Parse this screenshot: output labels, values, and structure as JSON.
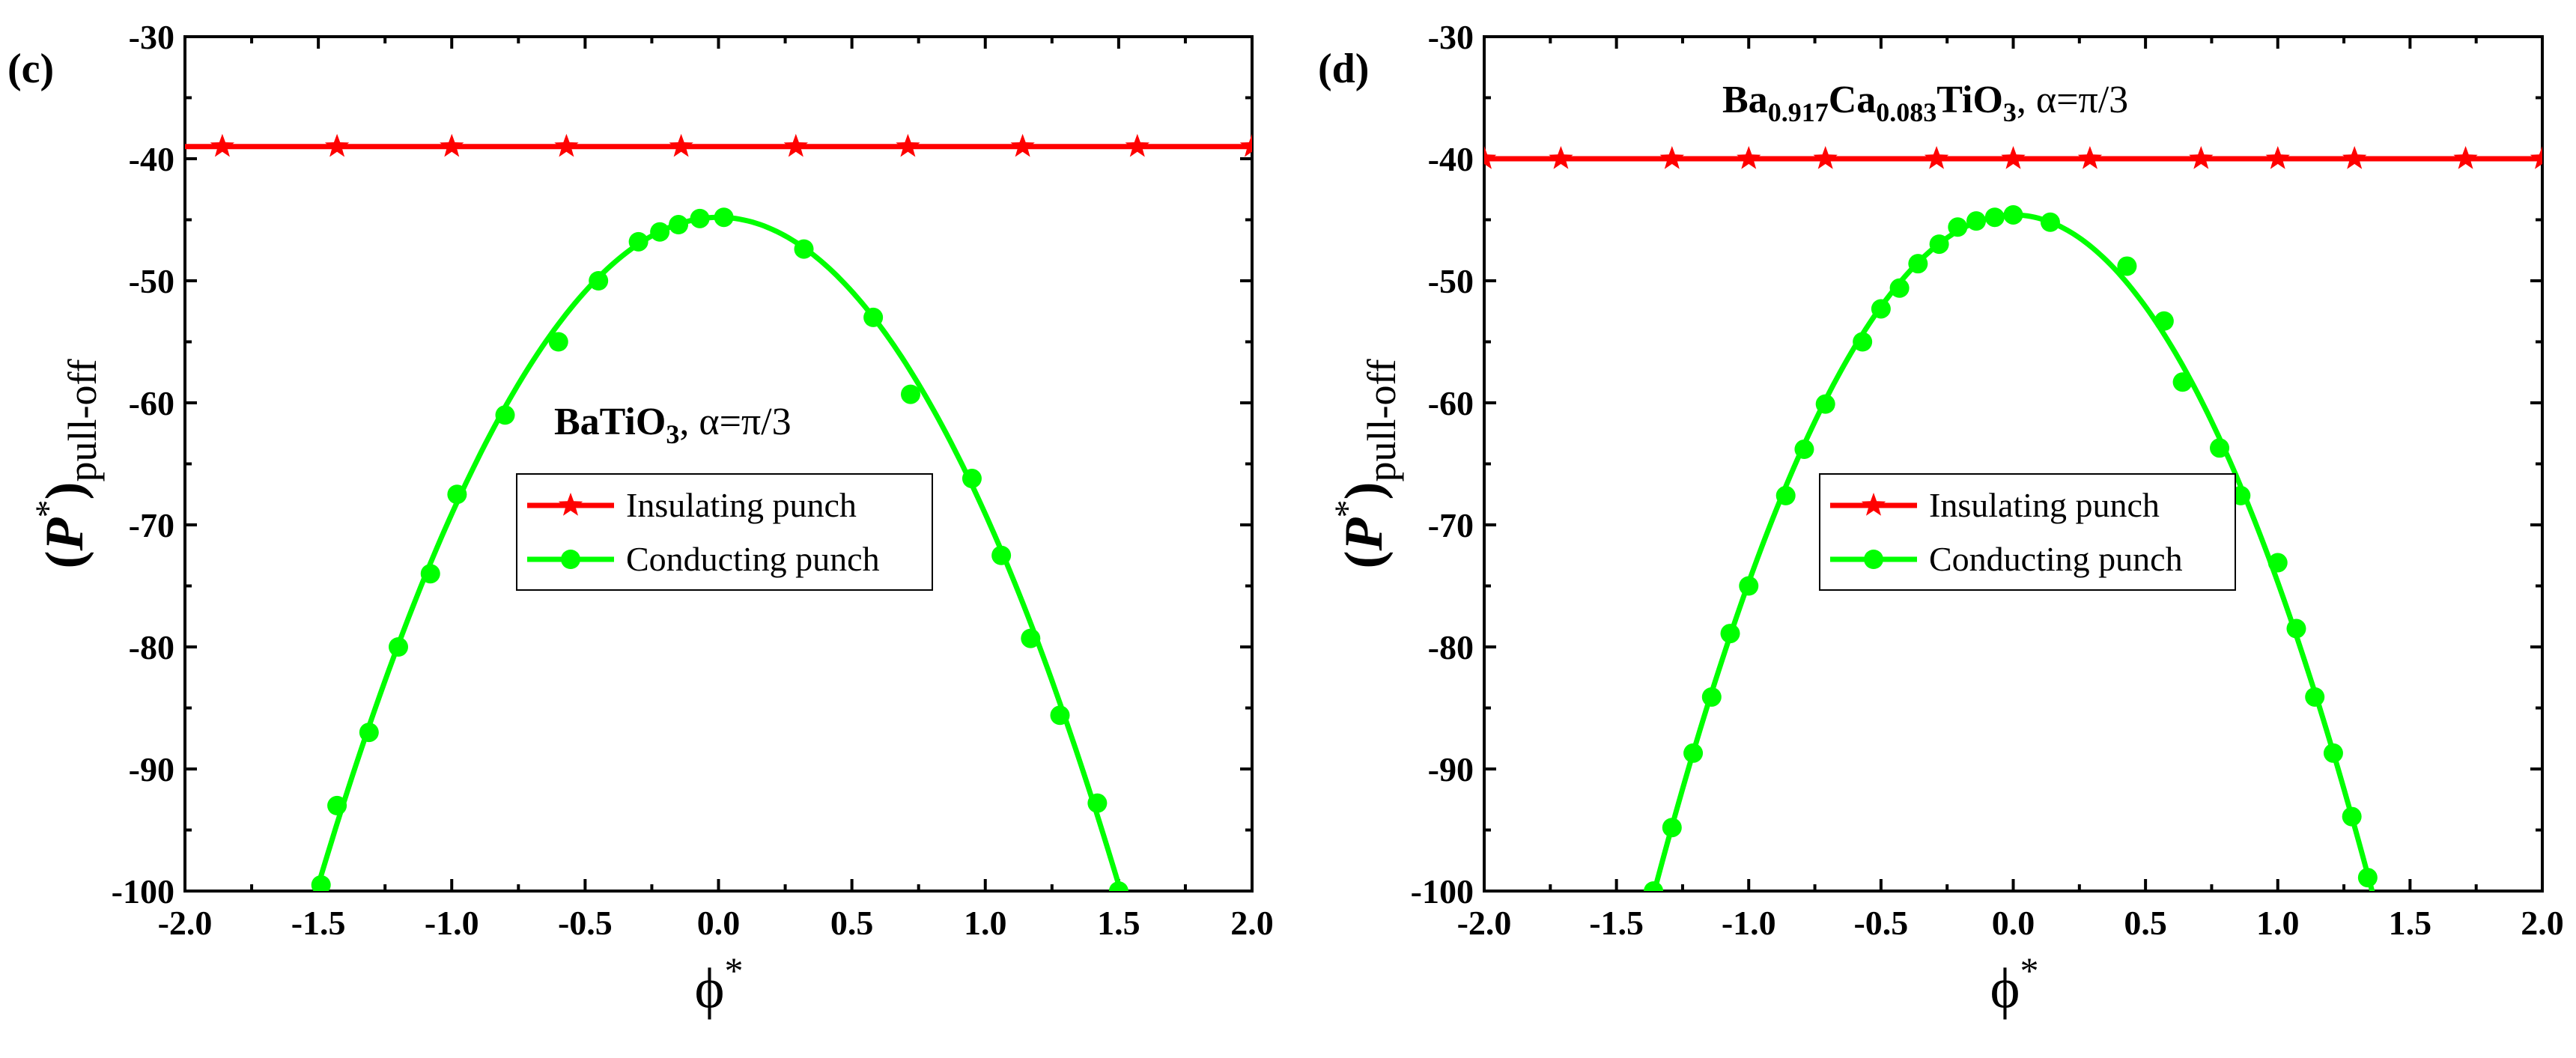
{
  "chart_data": [
    {
      "type": "line",
      "panel_label": "(c)",
      "xlabel": "ϕ",
      "xlabel_sup": "*",
      "ylabel": "P",
      "ylabel_sup": "*",
      "ylabel_sub": "pull-off",
      "xlim": [
        -2.0,
        2.0
      ],
      "ylim": [
        -100,
        -30
      ],
      "xticks": [
        -2.0,
        -1.5,
        -1.0,
        -0.5,
        0.0,
        0.5,
        1.0,
        1.5,
        2.0
      ],
      "xtick_labels": [
        "-2.0",
        "-1.5",
        "-1.0",
        "-0.5",
        "0.0",
        "0.5",
        "1.0",
        "1.5",
        "2.0"
      ],
      "yticks": [
        -100,
        -90,
        -80,
        -70,
        -60,
        -50,
        -40,
        -30
      ],
      "ytick_labels": [
        "-100",
        "-90",
        "-80",
        "-70",
        "-60",
        "-50",
        "-40",
        "-30"
      ],
      "annotation": {
        "base": "BaTiO",
        "sub": "3",
        "tail": ",   α=π/3"
      },
      "legend": [
        {
          "label": "Insulating punch",
          "color": "#ff0000",
          "marker": "star"
        },
        {
          "label": "Conducting punch",
          "color": "#00ff00",
          "marker": "circle"
        }
      ],
      "series": [
        {
          "name": "Insulating punch",
          "color": "#ff0000",
          "marker": "star",
          "line_x": [
            -2.0,
            2.0
          ],
          "line_y": [
            -39,
            -39
          ],
          "x": [
            -1.86,
            -1.43,
            -1.0,
            -0.57,
            -0.14,
            0.29,
            0.71,
            1.14,
            1.57,
            2.0
          ],
          "y": [
            -39,
            -39,
            -39,
            -39,
            -39,
            -39,
            -39,
            -39,
            -39,
            -39
          ]
        },
        {
          "name": "Conducting punch",
          "color": "#00ff00",
          "marker": "circle",
          "curve": {
            "a": -24.3,
            "c": -44.8,
            "from": -1.51,
            "to": 1.52
          },
          "x": [
            -1.49,
            -1.43,
            -1.31,
            -1.2,
            -1.08,
            -0.98,
            -0.8,
            -0.6,
            -0.45,
            -0.3,
            -0.22,
            -0.15,
            -0.07,
            0.02,
            0.32,
            0.58,
            0.72,
            0.95,
            1.06,
            1.17,
            1.28,
            1.42,
            1.5
          ],
          "y": [
            -99.5,
            -93,
            -87,
            -80,
            -74,
            -67.5,
            -61,
            -55,
            -50,
            -46.8,
            -46,
            -45.4,
            -44.9,
            -44.8,
            -47.4,
            -53,
            -59.3,
            -66.2,
            -72.5,
            -79.3,
            -85.6,
            -92.8,
            -100
          ]
        }
      ]
    },
    {
      "type": "line",
      "panel_label": "(d)",
      "xlabel": "ϕ",
      "xlabel_sup": "*",
      "ylabel": "P",
      "ylabel_sup": "*",
      "ylabel_sub": "pull-off",
      "xlim": [
        -2.0,
        2.0
      ],
      "ylim": [
        -100,
        -30
      ],
      "xticks": [
        -2.0,
        -1.5,
        -1.0,
        -0.5,
        0.0,
        0.5,
        1.0,
        1.5,
        2.0
      ],
      "xtick_labels": [
        "-2.0",
        "-1.5",
        "-1.0",
        "-0.5",
        "0.0",
        "0.5",
        "1.0",
        "1.5",
        "2.0"
      ],
      "yticks": [
        -100,
        -90,
        -80,
        -70,
        -60,
        -50,
        -40,
        -30
      ],
      "ytick_labels": [
        "-100",
        "-90",
        "-80",
        "-70",
        "-60",
        "-50",
        "-40",
        "-30"
      ],
      "annotation": {
        "formula": [
          [
            "Ba",
            "0.917"
          ],
          [
            "Ca",
            "0.083"
          ],
          [
            "TiO",
            "3"
          ]
        ],
        "tail": ",   α=π/3"
      },
      "legend": [
        {
          "label": "Insulating punch",
          "color": "#ff0000",
          "marker": "star"
        },
        {
          "label": "Conducting punch",
          "color": "#00ff00",
          "marker": "circle"
        }
      ],
      "series": [
        {
          "name": "Insulating punch",
          "color": "#ff0000",
          "marker": "star",
          "line_x": [
            -2.0,
            2.0
          ],
          "line_y": [
            -40,
            -40
          ],
          "x": [
            -2.0,
            -1.71,
            -1.29,
            -1.0,
            -0.71,
            -0.29,
            0.0,
            0.29,
            0.71,
            1.0,
            1.29,
            1.71,
            2.0
          ],
          "y": [
            -40,
            -40,
            -40,
            -40,
            -40,
            -40,
            -40,
            -40,
            -40,
            -40,
            -40,
            -40,
            -40
          ]
        },
        {
          "name": "Conducting punch",
          "color": "#00ff00",
          "marker": "circle",
          "curve": {
            "a": -30.1,
            "c": -44.6,
            "from": -1.36,
            "to": 1.36
          },
          "x": [
            -1.36,
            -1.29,
            -1.21,
            -1.14,
            -1.07,
            -1.0,
            -0.86,
            -0.79,
            -0.71,
            -0.57,
            -0.5,
            -0.43,
            -0.36,
            -0.28,
            -0.21,
            -0.14,
            -0.07,
            0.0,
            0.14,
            0.43,
            0.57,
            0.64,
            0.78,
            0.86,
            1.0,
            1.07,
            1.14,
            1.21,
            1.28,
            1.34
          ],
          "y": [
            -100,
            -94.8,
            -88.7,
            -84.1,
            -78.9,
            -75,
            -67.6,
            -63.8,
            -60.1,
            -55,
            -52.3,
            -50.6,
            -48.6,
            -47,
            -45.6,
            -45.1,
            -44.8,
            -44.6,
            -45.2,
            -48.8,
            -53.3,
            -58.3,
            -63.7,
            -67.6,
            -73.1,
            -78.5,
            -84.1,
            -88.7,
            -93.9,
            -98.9
          ]
        }
      ]
    }
  ]
}
